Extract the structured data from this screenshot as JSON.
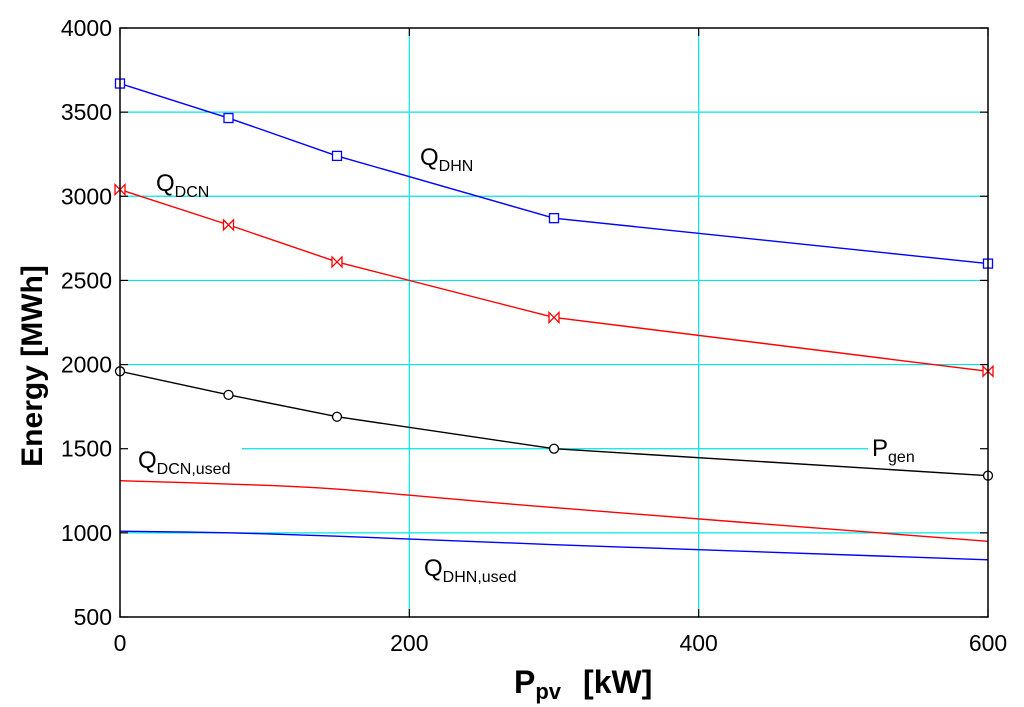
{
  "chart_data": {
    "type": "line",
    "title": "",
    "xlabel": {
      "main": "P",
      "sub": "pv",
      "unit": "[kW]"
    },
    "ylabel": "Energy [MWh]",
    "xlim": [
      0,
      600
    ],
    "ylim": [
      500,
      4000
    ],
    "x_scale_note": "tick labels 0, 200, 400, 600 are evenly spaced; label 600 sits at the right edge",
    "xticks": [
      {
        "value": 0,
        "label": "0"
      },
      {
        "value": 200,
        "label": "200"
      },
      {
        "value": 400,
        "label": "400"
      },
      {
        "value": 600,
        "label": "600"
      }
    ],
    "yticks": [
      {
        "value": 500,
        "label": "500"
      },
      {
        "value": 1000,
        "label": "1000"
      },
      {
        "value": 1500,
        "label": "1500"
      },
      {
        "value": 2000,
        "label": "2000"
      },
      {
        "value": 2500,
        "label": "2500"
      },
      {
        "value": 3000,
        "label": "3000"
      },
      {
        "value": 3500,
        "label": "3500"
      },
      {
        "value": 4000,
        "label": "4000"
      }
    ],
    "grid": true,
    "series": [
      {
        "id": "qdhn",
        "name": "Q_DHN",
        "label_main": "Q",
        "label_sub": "DHN",
        "color": "#0000ff",
        "marker": "square",
        "x": [
          0,
          75,
          150,
          300,
          600
        ],
        "values": [
          3670,
          3465,
          3240,
          2870,
          2600
        ]
      },
      {
        "id": "qdcn",
        "name": "Q_DCN",
        "label_main": "Q",
        "label_sub": "DCN",
        "color": "#ff0000",
        "marker": "bowtie",
        "x": [
          0,
          75,
          150,
          300,
          600
        ],
        "values": [
          3040,
          2830,
          2610,
          2280,
          1960
        ]
      },
      {
        "id": "pgen",
        "name": "P_gen",
        "label_main": "P",
        "label_sub": "gen",
        "color": "#000000",
        "marker": "circle",
        "x": [
          0,
          75,
          150,
          300,
          600
        ],
        "values": [
          1960,
          1820,
          1690,
          1500,
          1340
        ]
      },
      {
        "id": "qdcnused",
        "name": "Q_DCN,used",
        "label_main": "Q",
        "label_sub": "DCN,used",
        "color": "#ff0000",
        "marker": "none",
        "x": [
          0,
          75,
          150,
          300,
          600
        ],
        "values": [
          1310,
          1290,
          1260,
          1150,
          950
        ]
      },
      {
        "id": "qdhnused",
        "name": "Q_DHN,used",
        "label_main": "Q",
        "label_sub": "DHN,used",
        "color": "#0000ff",
        "marker": "none",
        "x": [
          0,
          75,
          150,
          300,
          600
        ],
        "values": [
          1010,
          1000,
          980,
          930,
          840
        ]
      }
    ]
  },
  "colors": {
    "grid": "#00e5e5",
    "axis": "#000000"
  }
}
